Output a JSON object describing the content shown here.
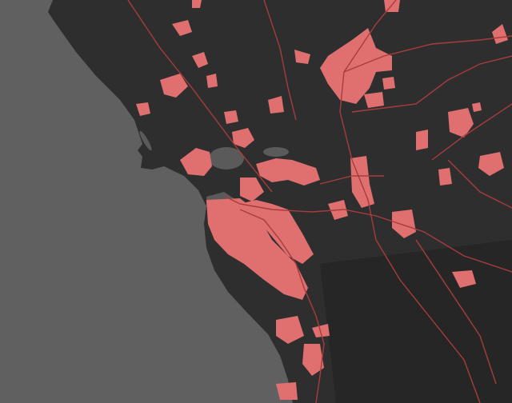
{
  "map": {
    "colors": {
      "ocean": "#606060",
      "land": "#2e2e2e",
      "land_dark": "#262626",
      "water_inland": "#5a5a5a",
      "urban": "#e07070",
      "road": "#a83c3c"
    }
  }
}
